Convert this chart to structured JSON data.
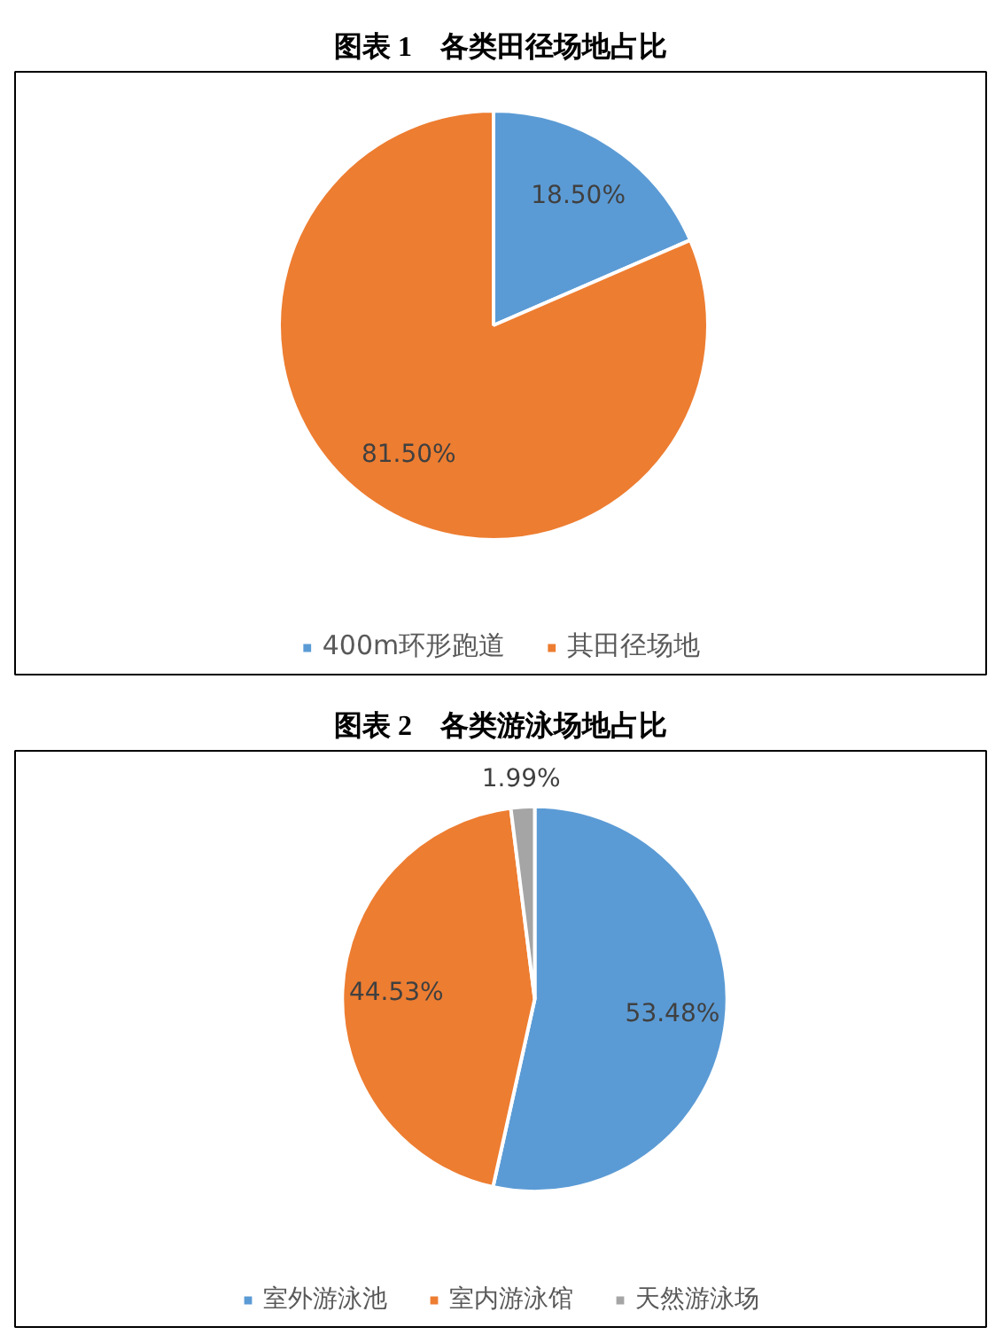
{
  "chart_data": [
    {
      "type": "pie",
      "title": "图表 1　各类田径场地占比",
      "categories": [
        "400m环形跑道",
        "其田径场地"
      ],
      "values": [
        18.5,
        81.5
      ],
      "colors": [
        "#5b9bd5",
        "#ed7d31"
      ],
      "value_labels": [
        "18.50%",
        "81.50%"
      ],
      "legend": "bottom"
    },
    {
      "type": "pie",
      "title": "图表 2　各类游泳场地占比",
      "categories": [
        "室外游泳池",
        "室内游泳馆",
        "天然游泳场"
      ],
      "values": [
        53.48,
        44.53,
        1.99
      ],
      "colors": [
        "#5b9bd5",
        "#ed7d31",
        "#a5a5a5"
      ],
      "value_labels": [
        "53.48%",
        "44.53%",
        "1.99%"
      ],
      "legend": "bottom"
    }
  ]
}
